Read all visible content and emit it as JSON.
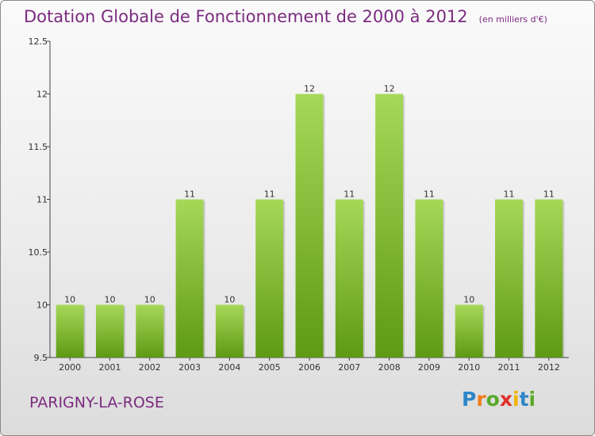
{
  "header": {
    "title": "Dotation Globale de Fonctionnement de 2000 à 2012",
    "subtitle": "(en milliers d'€)"
  },
  "footer": {
    "city": "PARIGNY-LA-ROSE",
    "logo_letters": [
      {
        "ch": "P",
        "color": "#2e86c8"
      },
      {
        "ch": "r",
        "color": "#f07d1a"
      },
      {
        "ch": "o",
        "color": "#5aaa2a"
      },
      {
        "ch": "x",
        "color": "#e0302a"
      },
      {
        "ch": "i",
        "color": "#f0b400"
      },
      {
        "ch": "t",
        "color": "#2e86c8"
      },
      {
        "ch": "i",
        "color": "#5aaa2a"
      }
    ]
  },
  "colors": {
    "bar_top": "#a6d858",
    "bar_bottom": "#5e9a14",
    "axis": "#444444",
    "grid": "#cccccc"
  },
  "chart_data": {
    "type": "bar",
    "categories": [
      "2000",
      "2001",
      "2002",
      "2003",
      "2004",
      "2005",
      "2006",
      "2007",
      "2008",
      "2009",
      "2010",
      "2011",
      "2012"
    ],
    "values": [
      10,
      10,
      10,
      11,
      10,
      11,
      12,
      11,
      12,
      11,
      10,
      11,
      11
    ],
    "value_labels": [
      "10",
      "10",
      "10",
      "11",
      "10",
      "11",
      "12",
      "11",
      "12",
      "11",
      "10",
      "11",
      "11"
    ],
    "title": "Dotation Globale de Fonctionnement de 2000 à 2012",
    "subtitle": "(en milliers d'€)",
    "xlabel": "",
    "ylabel": "",
    "ylim": [
      9.5,
      12.5
    ],
    "yticks": [
      9.5,
      10,
      10.5,
      11,
      11.5,
      12,
      12.5
    ],
    "ytick_labels": [
      "9.5",
      "10",
      "10.5",
      "11",
      "11.5",
      "12",
      "12.5"
    ],
    "grid": false,
    "legend": "none"
  }
}
